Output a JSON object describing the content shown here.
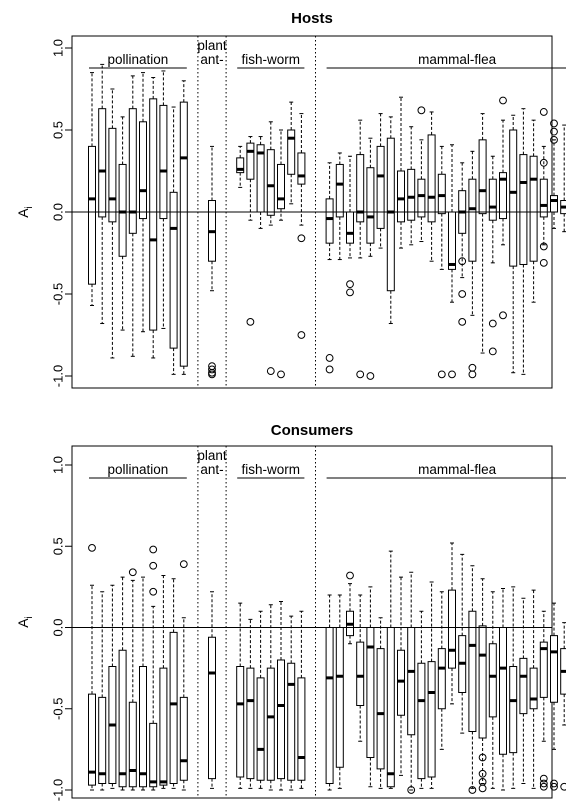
{
  "chart_data": [
    {
      "type": "box",
      "title": "Hosts",
      "ylabel": "A",
      "ylabel_sub": "i",
      "ylim": [
        -1.0,
        1.0
      ],
      "yticks": [
        "-1.0",
        "-0.5",
        "0.0",
        "0.5",
        "1.0"
      ],
      "reference_line": 0,
      "groups": [
        {
          "label": "pollination",
          "boxes": [
            {
              "q1": -0.44,
              "median": 0.08,
              "q3": 0.4,
              "wlo": -0.57,
              "whi": 0.85,
              "out": []
            },
            {
              "q1": -0.03,
              "median": 0.25,
              "q3": 0.63,
              "wlo": -0.68,
              "whi": 0.9,
              "out": []
            },
            {
              "q1": -0.06,
              "median": 0.08,
              "q3": 0.51,
              "wlo": -0.89,
              "whi": 0.75,
              "out": []
            },
            {
              "q1": -0.27,
              "median": 0.0,
              "q3": 0.29,
              "wlo": -0.72,
              "whi": 0.58,
              "out": []
            },
            {
              "q1": -0.13,
              "median": 0.0,
              "q3": 0.63,
              "wlo": -0.88,
              "whi": 0.83,
              "out": []
            },
            {
              "q1": -0.04,
              "median": 0.13,
              "q3": 0.55,
              "wlo": -0.73,
              "whi": 0.85,
              "out": []
            },
            {
              "q1": -0.72,
              "median": -0.17,
              "q3": 0.69,
              "wlo": -0.89,
              "whi": 0.82,
              "out": []
            },
            {
              "q1": -0.04,
              "median": 0.25,
              "q3": 0.65,
              "wlo": -0.71,
              "whi": 0.86,
              "out": []
            },
            {
              "q1": -0.83,
              "median": -0.1,
              "q3": 0.12,
              "wlo": -0.99,
              "whi": 0.64,
              "out": []
            },
            {
              "q1": -0.94,
              "median": 0.33,
              "q3": 0.67,
              "wlo": -0.99,
              "whi": 0.8,
              "out": []
            }
          ]
        },
        {
          "label": "plant ant-",
          "boxes": [
            {
              "q1": -0.3,
              "median": -0.12,
              "q3": 0.07,
              "wlo": -0.48,
              "whi": 0.4,
              "out": [
                -0.94,
                -0.96,
                -0.98,
                -0.99
              ]
            }
          ]
        },
        {
          "label": "fish-worm",
          "boxes": [
            {
              "q1": 0.24,
              "median": 0.26,
              "q3": 0.33,
              "wlo": 0.15,
              "whi": 0.4,
              "out": []
            },
            {
              "q1": 0.2,
              "median": 0.37,
              "q3": 0.42,
              "wlo": -0.05,
              "whi": 0.46,
              "out": [
                -0.67
              ]
            },
            {
              "q1": 0.0,
              "median": 0.36,
              "q3": 0.41,
              "wlo": -0.1,
              "whi": 0.46,
              "out": []
            },
            {
              "q1": -0.02,
              "median": 0.16,
              "q3": 0.38,
              "wlo": -0.08,
              "whi": 0.55,
              "out": [
                -0.97
              ]
            },
            {
              "q1": 0.02,
              "median": 0.08,
              "q3": 0.29,
              "wlo": -0.05,
              "whi": 0.5,
              "out": [
                -0.99
              ]
            },
            {
              "q1": 0.23,
              "median": 0.45,
              "q3": 0.5,
              "wlo": 0.05,
              "whi": 0.67,
              "out": []
            },
            {
              "q1": 0.17,
              "median": 0.22,
              "q3": 0.36,
              "wlo": -0.08,
              "whi": 0.6,
              "out": [
                -0.16,
                -0.75
              ]
            }
          ]
        },
        {
          "label": "mammal-flea",
          "boxes": [
            {
              "q1": -0.19,
              "median": -0.04,
              "q3": 0.08,
              "wlo": -0.29,
              "whi": 0.3,
              "out": [
                -0.89,
                -0.96
              ]
            },
            {
              "q1": -0.03,
              "median": 0.17,
              "q3": 0.29,
              "wlo": -0.29,
              "whi": 0.36,
              "out": []
            },
            {
              "q1": -0.19,
              "median": -0.13,
              "q3": 0.0,
              "wlo": -0.28,
              "whi": 0.34,
              "out": [
                -0.44,
                -0.49
              ]
            },
            {
              "q1": -0.06,
              "median": 0.0,
              "q3": 0.35,
              "wlo": -0.28,
              "whi": 0.56,
              "out": [
                -0.99
              ]
            },
            {
              "q1": -0.19,
              "median": -0.03,
              "q3": 0.27,
              "wlo": -0.27,
              "whi": 0.45,
              "out": [
                -1.0
              ]
            },
            {
              "q1": -0.1,
              "median": 0.22,
              "q3": 0.4,
              "wlo": -0.22,
              "whi": 0.6,
              "out": []
            },
            {
              "q1": -0.48,
              "median": 0.0,
              "q3": 0.45,
              "wlo": -0.68,
              "whi": 0.58,
              "out": []
            },
            {
              "q1": -0.06,
              "median": 0.08,
              "q3": 0.25,
              "wlo": -0.22,
              "whi": 0.7,
              "out": []
            },
            {
              "q1": -0.05,
              "median": 0.09,
              "q3": 0.26,
              "wlo": -0.2,
              "whi": 0.52,
              "out": []
            },
            {
              "q1": -0.03,
              "median": 0.1,
              "q3": 0.2,
              "wlo": -0.18,
              "whi": 0.44,
              "out": [
                0.62
              ]
            },
            {
              "q1": -0.06,
              "median": 0.09,
              "q3": 0.47,
              "wlo": -0.3,
              "whi": 0.61,
              "out": []
            },
            {
              "q1": -0.01,
              "median": 0.1,
              "q3": 0.23,
              "wlo": -0.35,
              "whi": 0.4,
              "out": [
                -0.99
              ]
            },
            {
              "q1": -0.35,
              "median": -0.32,
              "q3": 0.0,
              "wlo": -0.55,
              "whi": 0.41,
              "out": [
                -0.99
              ]
            },
            {
              "q1": -0.13,
              "median": 0.0,
              "q3": 0.13,
              "wlo": -0.4,
              "whi": 0.3,
              "out": [
                -0.3,
                -0.5,
                -0.67
              ]
            },
            {
              "q1": -0.3,
              "median": 0.02,
              "q3": 0.2,
              "wlo": -0.63,
              "whi": 0.37,
              "out": [
                -0.95,
                -0.99
              ]
            },
            {
              "q1": -0.01,
              "median": 0.13,
              "q3": 0.44,
              "wlo": -0.86,
              "whi": 0.6,
              "out": []
            },
            {
              "q1": -0.05,
              "median": 0.03,
              "q3": 0.2,
              "wlo": -0.31,
              "whi": 0.34,
              "out": [
                -0.68,
                -0.85
              ]
            },
            {
              "q1": -0.04,
              "median": 0.2,
              "q3": 0.24,
              "wlo": -0.2,
              "whi": 0.56,
              "out": [
                0.68,
                -0.63
              ]
            },
            {
              "q1": -0.33,
              "median": 0.12,
              "q3": 0.5,
              "wlo": -0.98,
              "whi": 0.59,
              "out": []
            },
            {
              "q1": -0.32,
              "median": 0.18,
              "q3": 0.35,
              "wlo": -0.99,
              "whi": 0.63,
              "out": []
            },
            {
              "q1": -0.3,
              "median": 0.2,
              "q3": 0.34,
              "wlo": -0.55,
              "whi": 0.56,
              "out": []
            },
            {
              "q1": -0.03,
              "median": 0.04,
              "q3": 0.2,
              "wlo": -0.2,
              "whi": 0.4,
              "out": [
                0.61,
                0.3,
                -0.21,
                -0.31
              ]
            },
            {
              "q1": 0.0,
              "median": 0.07,
              "q3": 0.1,
              "wlo": -0.1,
              "whi": 0.44,
              "out": [
                0.54,
                0.49,
                0.44
              ]
            },
            {
              "q1": -0.01,
              "median": 0.03,
              "q3": 0.07,
              "wlo": -0.12,
              "whi": 0.53,
              "out": []
            },
            {
              "q1": -0.04,
              "median": 0.01,
              "q3": 0.1,
              "wlo": -0.08,
              "whi": 0.5,
              "out": [
                -0.75
              ]
            },
            {
              "q1": -0.2,
              "median": 0.14,
              "q3": 0.37,
              "wlo": -0.37,
              "whi": 0.65,
              "out": []
            }
          ]
        }
      ]
    },
    {
      "type": "box",
      "title": "Consumers",
      "ylabel": "A",
      "ylabel_sub": "i",
      "ylim": [
        -1.0,
        1.0
      ],
      "yticks": [
        "-1.0",
        "-0.5",
        "0.0",
        "0.5",
        "1.0"
      ],
      "reference_line": 0,
      "groups": [
        {
          "label": "pollination",
          "boxes": [
            {
              "q1": -0.97,
              "median": -0.89,
              "q3": -0.41,
              "wlo": -1.0,
              "whi": 0.26,
              "out": [
                0.49
              ]
            },
            {
              "q1": -0.96,
              "median": -0.9,
              "q3": -0.43,
              "wlo": -1.0,
              "whi": 0.22,
              "out": []
            },
            {
              "q1": -0.96,
              "median": -0.6,
              "q3": -0.24,
              "wlo": -0.99,
              "whi": 0.26,
              "out": []
            },
            {
              "q1": -0.98,
              "median": -0.9,
              "q3": -0.14,
              "wlo": -1.0,
              "whi": 0.31,
              "out": []
            },
            {
              "q1": -0.98,
              "median": -0.88,
              "q3": -0.46,
              "wlo": -1.0,
              "whi": 0.29,
              "out": [
                0.34
              ]
            },
            {
              "q1": -0.98,
              "median": -0.9,
              "q3": -0.24,
              "wlo": -1.0,
              "whi": 0.31,
              "out": []
            },
            {
              "q1": -0.98,
              "median": -0.95,
              "q3": -0.59,
              "wlo": -1.0,
              "whi": 0.13,
              "out": [
                0.48,
                0.38,
                0.22
              ]
            },
            {
              "q1": -0.97,
              "median": -0.95,
              "q3": -0.25,
              "wlo": -0.99,
              "whi": 0.32,
              "out": []
            },
            {
              "q1": -0.96,
              "median": -0.47,
              "q3": -0.03,
              "wlo": -0.99,
              "whi": 0.3,
              "out": []
            },
            {
              "q1": -0.94,
              "median": -0.82,
              "q3": -0.43,
              "wlo": -1.0,
              "whi": 0.06,
              "out": [
                0.39
              ]
            }
          ]
        },
        {
          "label": "plant ant-",
          "boxes": [
            {
              "q1": -0.93,
              "median": -0.28,
              "q3": -0.06,
              "wlo": -0.99,
              "whi": 0.22,
              "out": []
            }
          ]
        },
        {
          "label": "fish-worm",
          "boxes": [
            {
              "q1": -0.92,
              "median": -0.47,
              "q3": -0.24,
              "wlo": -0.99,
              "whi": 0.15,
              "out": []
            },
            {
              "q1": -0.93,
              "median": -0.45,
              "q3": -0.25,
              "wlo": -0.99,
              "whi": 0.05,
              "out": []
            },
            {
              "q1": -0.94,
              "median": -0.75,
              "q3": -0.31,
              "wlo": -0.99,
              "whi": 0.1,
              "out": []
            },
            {
              "q1": -0.94,
              "median": -0.55,
              "q3": -0.25,
              "wlo": -1.0,
              "whi": 0.14,
              "out": []
            },
            {
              "q1": -0.93,
              "median": -0.48,
              "q3": -0.2,
              "wlo": -1.0,
              "whi": 0.16,
              "out": []
            },
            {
              "q1": -0.94,
              "median": -0.35,
              "q3": -0.22,
              "wlo": -1.0,
              "whi": 0.07,
              "out": []
            },
            {
              "q1": -0.94,
              "median": -0.8,
              "q3": -0.31,
              "wlo": -0.99,
              "whi": 0.1,
              "out": []
            }
          ]
        },
        {
          "label": "mammal-flea",
          "boxes": [
            {
              "q1": -0.96,
              "median": -0.31,
              "q3": 0.0,
              "wlo": -1.0,
              "whi": 0.2,
              "out": []
            },
            {
              "q1": -0.86,
              "median": -0.3,
              "q3": 0.0,
              "wlo": -0.99,
              "whi": 0.2,
              "out": []
            },
            {
              "q1": -0.05,
              "median": 0.02,
              "q3": 0.1,
              "wlo": -0.1,
              "whi": 0.27,
              "out": [
                0.32
              ]
            },
            {
              "q1": -0.48,
              "median": -0.3,
              "q3": -0.09,
              "wlo": -0.7,
              "whi": 0.2,
              "out": []
            },
            {
              "q1": -0.8,
              "median": -0.12,
              "q3": 0.0,
              "wlo": -0.98,
              "whi": 0.25,
              "out": []
            },
            {
              "q1": -0.87,
              "median": -0.53,
              "q3": -0.13,
              "wlo": -0.99,
              "whi": 0.06,
              "out": []
            },
            {
              "q1": -0.98,
              "median": -0.9,
              "q3": 0.0,
              "wlo": -0.99,
              "whi": 0.47,
              "out": []
            },
            {
              "q1": -0.54,
              "median": -0.33,
              "q3": -0.14,
              "wlo": -0.91,
              "whi": 0.31,
              "out": []
            },
            {
              "q1": -0.66,
              "median": -0.27,
              "q3": 0.0,
              "wlo": -1.0,
              "whi": 0.34,
              "out": [
                -1.0
              ]
            },
            {
              "q1": -0.93,
              "median": -0.45,
              "q3": -0.22,
              "wlo": -0.99,
              "whi": 0.1,
              "out": []
            },
            {
              "q1": -0.92,
              "median": -0.4,
              "q3": -0.21,
              "wlo": -0.99,
              "whi": 0.28,
              "out": []
            },
            {
              "q1": -0.5,
              "median": -0.25,
              "q3": -0.13,
              "wlo": -0.75,
              "whi": 0.22,
              "out": []
            },
            {
              "q1": -0.25,
              "median": -0.14,
              "q3": 0.23,
              "wlo": -0.47,
              "whi": 0.52,
              "out": []
            },
            {
              "q1": -0.4,
              "median": -0.22,
              "q3": -0.05,
              "wlo": -0.65,
              "whi": 0.45,
              "out": []
            },
            {
              "q1": -0.64,
              "median": -0.11,
              "q3": 0.1,
              "wlo": -0.99,
              "whi": 0.38,
              "out": [
                -1.0
              ]
            },
            {
              "q1": -0.68,
              "median": -0.17,
              "q3": 0.01,
              "wlo": -0.96,
              "whi": 0.3,
              "out": [
                -0.8,
                -0.9,
                -0.95,
                -0.99
              ]
            },
            {
              "q1": -0.55,
              "median": -0.3,
              "q3": -0.1,
              "wlo": -0.99,
              "whi": 0.22,
              "out": []
            },
            {
              "q1": -0.78,
              "median": -0.25,
              "q3": 0.0,
              "wlo": -1.0,
              "whi": 0.24,
              "out": []
            },
            {
              "q1": -0.77,
              "median": -0.45,
              "q3": -0.24,
              "wlo": -0.99,
              "whi": 0.25,
              "out": []
            },
            {
              "q1": -0.53,
              "median": -0.3,
              "q3": -0.19,
              "wlo": -0.96,
              "whi": 0.18,
              "out": []
            },
            {
              "q1": -0.5,
              "median": -0.44,
              "q3": -0.25,
              "wlo": -0.99,
              "whi": 0.23,
              "out": []
            },
            {
              "q1": -0.43,
              "median": -0.13,
              "q3": -0.09,
              "wlo": -0.7,
              "whi": 0.1,
              "out": [
                -0.93,
                -0.96,
                -0.98
              ]
            },
            {
              "q1": -0.46,
              "median": -0.15,
              "q3": -0.05,
              "wlo": -0.75,
              "whi": 0.15,
              "out": [
                -0.96,
                -0.98
              ]
            },
            {
              "q1": -0.41,
              "median": -0.27,
              "q3": -0.13,
              "wlo": -0.6,
              "whi": 0.03,
              "out": [
                -0.98
              ]
            },
            {
              "q1": -0.3,
              "median": -0.05,
              "q3": 0.0,
              "wlo": -0.55,
              "whi": 0.1,
              "out": [
                -0.99
              ]
            },
            {
              "q1": -0.98,
              "median": -0.24,
              "q3": -0.18,
              "wlo": -1.0,
              "whi": -0.01,
              "out": []
            }
          ]
        }
      ]
    }
  ]
}
